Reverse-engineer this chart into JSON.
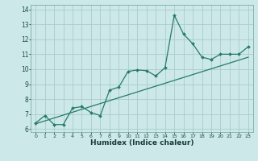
{
  "xlabel": "Humidex (Indice chaleur)",
  "bg_color": "#cce8e8",
  "grid_color": "#aacccc",
  "line_color": "#267a6a",
  "xlim": [
    -0.5,
    23.5
  ],
  "ylim": [
    5.8,
    14.3
  ],
  "xtick_vals": [
    0,
    1,
    2,
    3,
    4,
    5,
    6,
    7,
    8,
    9,
    10,
    11,
    12,
    13,
    14,
    15,
    16,
    17,
    18,
    19,
    20,
    21,
    22,
    23
  ],
  "ytick_vals": [
    6,
    7,
    8,
    9,
    10,
    11,
    12,
    13,
    14
  ],
  "scatter_x": [
    0,
    1,
    2,
    3,
    4,
    5,
    6,
    7,
    8,
    9,
    10,
    11,
    12,
    13,
    14,
    15,
    16,
    17,
    18,
    19,
    20,
    21,
    22,
    23
  ],
  "scatter_y": [
    6.4,
    6.9,
    6.3,
    6.3,
    7.4,
    7.5,
    7.1,
    6.9,
    8.6,
    8.8,
    9.85,
    9.95,
    9.9,
    9.55,
    10.1,
    13.6,
    12.35,
    11.7,
    10.8,
    10.65,
    11.0,
    11.0,
    11.0,
    11.5
  ],
  "line2_x": [
    0,
    23
  ],
  "line2_y": [
    6.35,
    10.8
  ]
}
